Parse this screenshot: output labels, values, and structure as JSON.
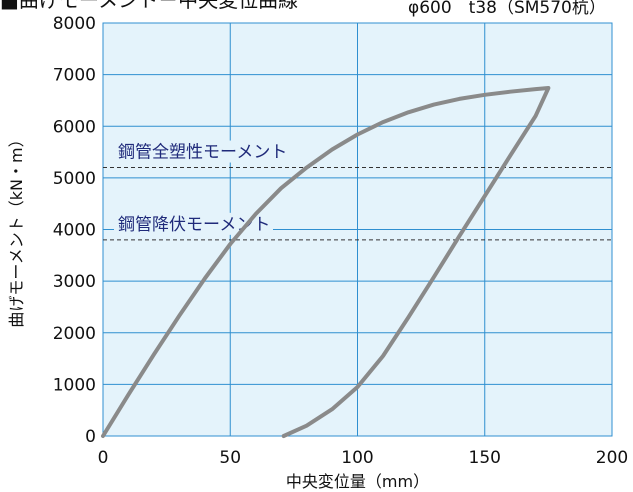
{
  "chart_data": {
    "type": "line",
    "title": "■曲げモーメント－中央変位曲線",
    "subtitle": "φ600　t38（SM570杭）",
    "xlabel": "中央変位量（mm）",
    "ylabel": "曲げモーメント（kN・m）",
    "xlim": [
      0,
      200
    ],
    "ylim": [
      0,
      8000
    ],
    "x_ticks": [
      "0",
      "50",
      "100",
      "150",
      "200"
    ],
    "y_ticks": [
      "0",
      "1000",
      "2000",
      "3000",
      "4000",
      "5000",
      "6000",
      "7000",
      "8000"
    ],
    "grid": true,
    "background_color": "#e4f3fb",
    "grid_color": "#2f8fd0",
    "series": [
      {
        "color": "#8a8a8a",
        "points": [
          [
            0,
            0
          ],
          [
            10,
            800
          ],
          [
            20,
            1580
          ],
          [
            30,
            2330
          ],
          [
            40,
            3050
          ],
          [
            50,
            3720
          ],
          [
            60,
            4300
          ],
          [
            70,
            4800
          ],
          [
            80,
            5200
          ],
          [
            90,
            5550
          ],
          [
            100,
            5840
          ],
          [
            110,
            6080
          ],
          [
            120,
            6270
          ],
          [
            130,
            6420
          ],
          [
            140,
            6530
          ],
          [
            150,
            6610
          ],
          [
            160,
            6670
          ],
          [
            170,
            6720
          ],
          [
            175,
            6740
          ],
          [
            170,
            6200
          ],
          [
            160,
            5430
          ],
          [
            150,
            4650
          ],
          [
            140,
            3870
          ],
          [
            130,
            3080
          ],
          [
            120,
            2300
          ],
          [
            110,
            1550
          ],
          [
            100,
            950
          ],
          [
            90,
            520
          ],
          [
            80,
            200
          ],
          [
            71,
            0
          ]
        ]
      }
    ],
    "reference_lines": [
      {
        "label": "鋼管全塑性モーメント",
        "value": 5200
      },
      {
        "label": "鋼管降伏モーメント",
        "value": 3800
      }
    ]
  }
}
